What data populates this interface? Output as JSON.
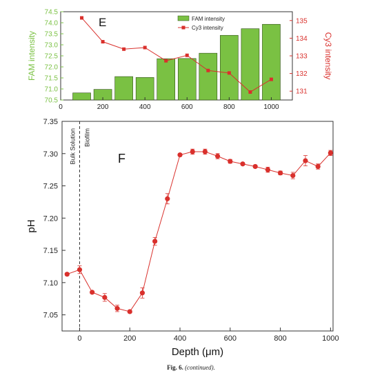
{
  "caption": {
    "label": "Fig. 6.",
    "text": "(continued)."
  },
  "chart_data": [
    {
      "panel_label": "E",
      "type": "bar+line",
      "x_tick_labels": [
        "0",
        "200",
        "400",
        "600",
        "800",
        "1000"
      ],
      "xlim": [
        0,
        1100
      ],
      "bar_series": {
        "name": "FAM intensity",
        "axis": "left",
        "color": "#7ac143",
        "x": [
          100,
          200,
          300,
          400,
          500,
          600,
          700,
          800,
          900,
          1000
        ],
        "values": [
          70.82,
          70.98,
          71.56,
          71.52,
          72.37,
          72.38,
          72.62,
          73.43,
          73.73,
          73.93
        ]
      },
      "line_series": {
        "name": "Cy3 intensity",
        "axis": "right",
        "color": "#d9302c",
        "x": [
          100,
          200,
          300,
          400,
          500,
          600,
          700,
          800,
          900,
          1000
        ],
        "values": [
          135.15,
          133.8,
          133.38,
          133.47,
          132.72,
          133.03,
          132.17,
          132.03,
          130.95,
          131.67
        ]
      },
      "left_axis": {
        "label": "FAM intensity",
        "ylim": [
          70.5,
          74.5
        ],
        "color": "#7ac143",
        "tick_labels": [
          "70.5",
          "71.0",
          "71.5",
          "72.0",
          "72.5",
          "73.0",
          "73.5",
          "74.0",
          "74.5"
        ]
      },
      "right_axis": {
        "label": "Cy3 intensity",
        "ylim": [
          130.5,
          135.5
        ],
        "color": "#d9302c",
        "tick_labels": [
          "131",
          "132",
          "133",
          "134",
          "135"
        ]
      },
      "legend_position": "top-right"
    },
    {
      "panel_label": "F",
      "type": "line",
      "xlabel": "Depth (μm)",
      "ylabel": "pH",
      "xlim": [
        -70,
        1010
      ],
      "ylim": [
        7.025,
        7.35
      ],
      "x_tick_labels": [
        "0",
        "200",
        "400",
        "600",
        "800",
        "1000"
      ],
      "y_tick_labels": [
        "7.05",
        "7.10",
        "7.15",
        "7.20",
        "7.25",
        "7.30",
        "7.35"
      ],
      "annotations": [
        "Bulk Solution",
        "Biofilm"
      ],
      "series": [
        {
          "color": "#d9302c",
          "x": [
            -50,
            0,
            50,
            100,
            150,
            200,
            250,
            300,
            350,
            400,
            450,
            500,
            550,
            600,
            650,
            700,
            750,
            800,
            850,
            900,
            950,
            1000
          ],
          "values": [
            7.113,
            7.12,
            7.085,
            7.077,
            7.06,
            7.055,
            7.084,
            7.164,
            7.23,
            7.298,
            7.303,
            7.303,
            7.296,
            7.288,
            7.284,
            7.28,
            7.275,
            7.27,
            7.266,
            7.289,
            7.28,
            7.301
          ],
          "errors": [
            0.002,
            0.006,
            0.002,
            0.006,
            0.005,
            0.002,
            0.008,
            0.006,
            0.008,
            0.002,
            0.004,
            0.004,
            0.004,
            0.003,
            0.002,
            0.002,
            0.004,
            0.003,
            0.005,
            0.008,
            0.004,
            0.004
          ]
        }
      ]
    }
  ]
}
